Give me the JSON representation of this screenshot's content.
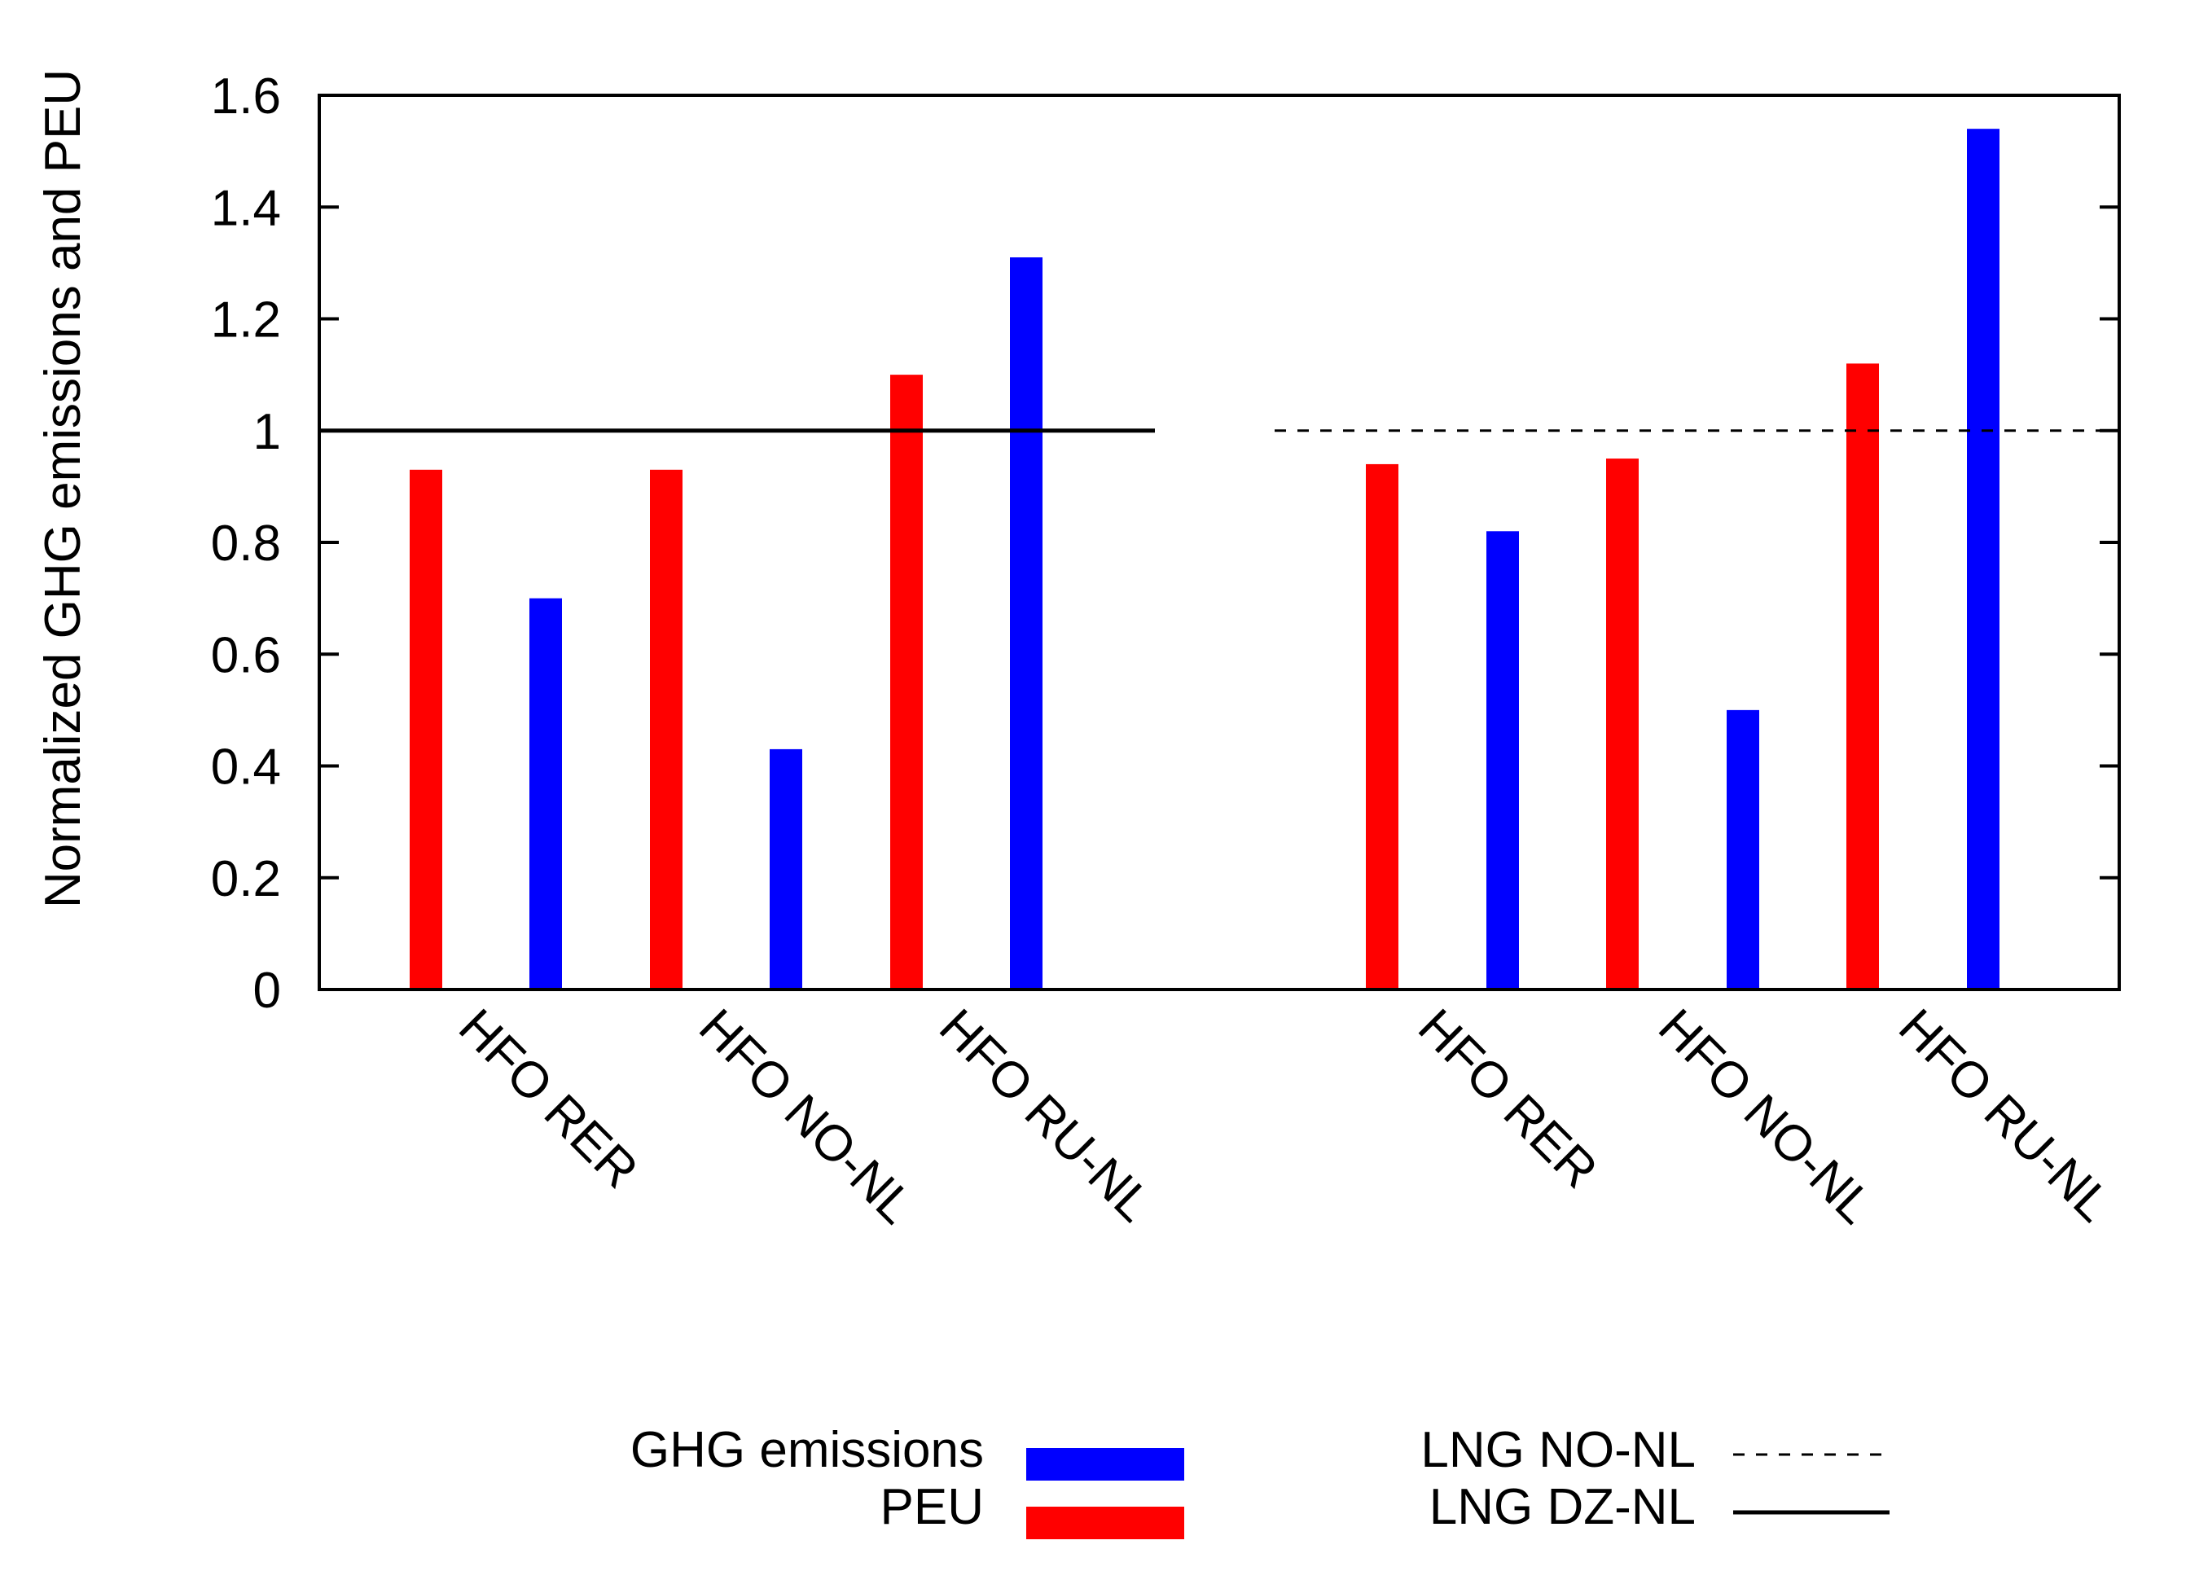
{
  "chart_data": {
    "type": "bar",
    "title": "",
    "ylabel": "Normalized GHG emissions and PEU",
    "xlabel": "",
    "ylim": [
      0,
      1.6
    ],
    "yticks": [
      "0",
      "0.2",
      "0.4",
      "0.6",
      "0.8",
      "1",
      "1.2",
      "1.4",
      "1.6"
    ],
    "grid": false,
    "groups": [
      {
        "reference": "LNG DZ-NL",
        "reference_style": "solid",
        "reference_value": 1,
        "categories": [
          "HFO RER",
          "HFO NO-NL",
          "HFO RU-NL"
        ],
        "series": [
          {
            "name": "PEU",
            "values": [
              0.93,
              0.93,
              1.1
            ]
          },
          {
            "name": "GHG emissions",
            "values": [
              0.7,
              0.43,
              1.31
            ]
          }
        ]
      },
      {
        "reference": "LNG NO-NL",
        "reference_style": "dashed",
        "reference_value": 1,
        "categories": [
          "HFO RER",
          "HFO NO-NL",
          "HFO RU-NL"
        ],
        "series": [
          {
            "name": "PEU",
            "values": [
              0.94,
              0.95,
              1.12
            ]
          },
          {
            "name": "GHG emissions",
            "values": [
              0.82,
              0.5,
              1.54
            ]
          }
        ]
      }
    ],
    "legend": {
      "placement": "bottom",
      "entries": [
        {
          "label": "GHG emissions",
          "kind": "bar",
          "color": "#0000ff"
        },
        {
          "label": "PEU",
          "kind": "bar",
          "color": "#ff0000"
        },
        {
          "label": "LNG NO-NL",
          "kind": "line",
          "style": "dashed",
          "color": "#000000"
        },
        {
          "label": "LNG DZ-NL",
          "kind": "line",
          "style": "solid",
          "color": "#000000"
        }
      ]
    },
    "colors": {
      "PEU": "#ff0000",
      "GHG emissions": "#0000ff",
      "axis": "#000000"
    }
  }
}
